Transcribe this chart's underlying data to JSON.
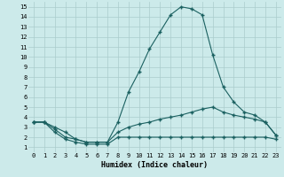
{
  "xlabel": "Humidex (Indice chaleur)",
  "bg_color": "#cceaea",
  "grid_color": "#aacccc",
  "line_color": "#1a6060",
  "xlim": [
    -0.5,
    23.5
  ],
  "ylim": [
    0.5,
    15.5
  ],
  "xticks": [
    0,
    1,
    2,
    3,
    4,
    5,
    6,
    7,
    8,
    9,
    10,
    11,
    12,
    13,
    14,
    15,
    16,
    17,
    18,
    19,
    20,
    21,
    22,
    23
  ],
  "yticks": [
    1,
    2,
    3,
    4,
    5,
    6,
    7,
    8,
    9,
    10,
    11,
    12,
    13,
    14,
    15
  ],
  "line1_x": [
    0,
    1,
    2,
    3,
    4,
    5,
    6,
    7,
    8,
    9,
    10,
    11,
    12,
    13,
    14,
    15,
    16,
    17,
    18,
    19,
    20,
    21,
    22,
    23
  ],
  "line1_y": [
    3.5,
    3.5,
    3.0,
    2.5,
    1.8,
    1.5,
    1.5,
    1.5,
    3.5,
    6.5,
    8.5,
    10.8,
    12.5,
    14.2,
    15.0,
    14.8,
    14.2,
    10.2,
    7.0,
    5.5,
    4.5,
    4.2,
    3.5,
    2.2
  ],
  "line2_x": [
    0,
    1,
    2,
    3,
    4,
    5,
    6,
    7,
    8,
    9,
    10,
    11,
    12,
    13,
    14,
    15,
    16,
    17,
    18,
    19,
    20,
    21,
    22,
    23
  ],
  "line2_y": [
    3.5,
    3.5,
    2.8,
    2.0,
    1.8,
    1.5,
    1.5,
    1.5,
    2.5,
    3.0,
    3.3,
    3.5,
    3.8,
    4.0,
    4.2,
    4.5,
    4.8,
    5.0,
    4.5,
    4.2,
    4.0,
    3.8,
    3.5,
    2.2
  ],
  "line3_x": [
    0,
    1,
    2,
    3,
    4,
    5,
    6,
    7,
    8,
    9,
    10,
    11,
    12,
    13,
    14,
    15,
    16,
    17,
    18,
    19,
    20,
    21,
    22,
    23
  ],
  "line3_y": [
    3.5,
    3.5,
    2.5,
    1.8,
    1.5,
    1.3,
    1.3,
    1.3,
    2.0,
    2.0,
    2.0,
    2.0,
    2.0,
    2.0,
    2.0,
    2.0,
    2.0,
    2.0,
    2.0,
    2.0,
    2.0,
    2.0,
    2.0,
    1.8
  ],
  "tick_fontsize": 5.0,
  "label_fontsize": 6.0
}
